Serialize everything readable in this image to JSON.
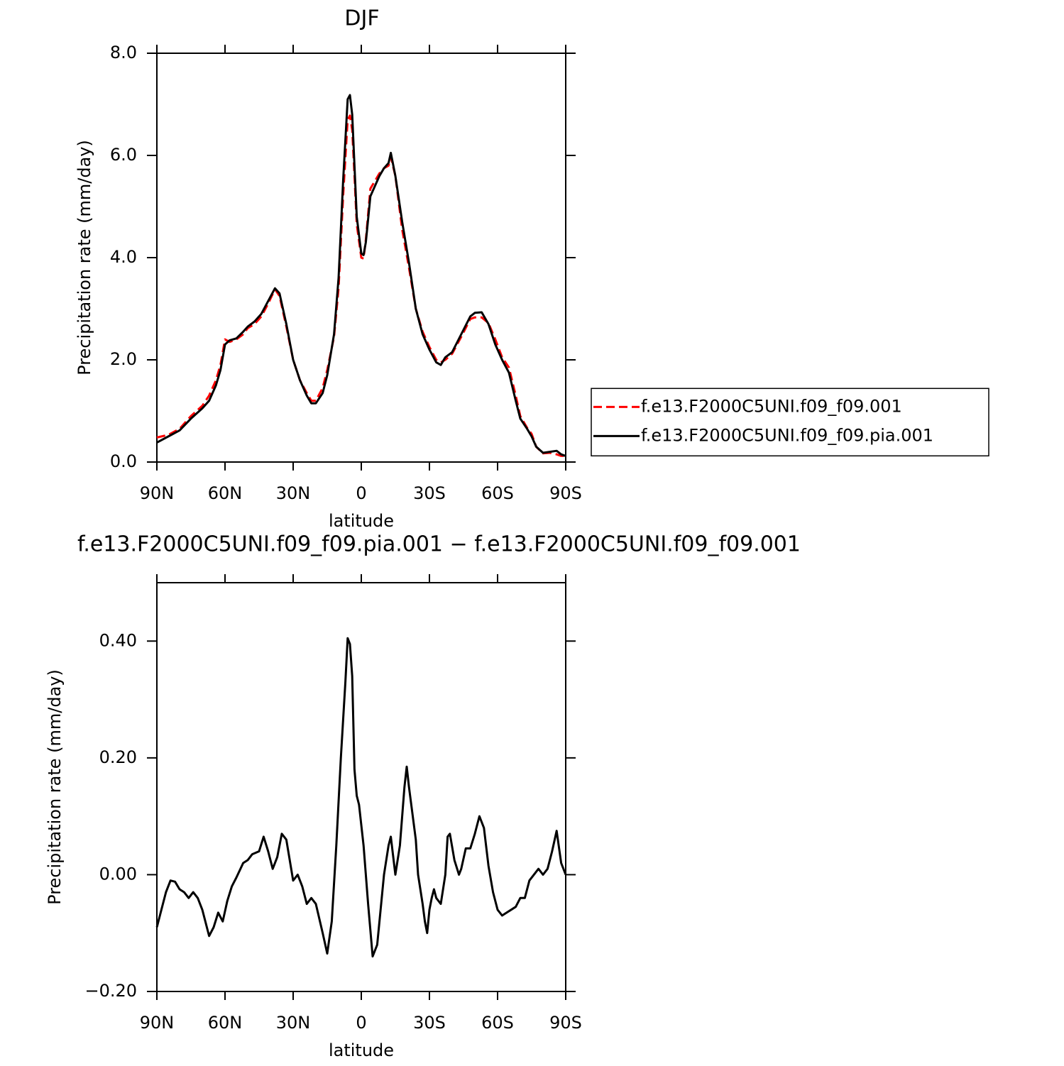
{
  "chart_data": [
    {
      "type": "line",
      "title": "DJF",
      "xlabel": "latitude",
      "ylabel": "Precipitation rate (mm/day)",
      "xlim": [
        90,
        -90
      ],
      "xticks": [
        {
          "value": 90,
          "label": "90N"
        },
        {
          "value": 60,
          "label": "60N"
        },
        {
          "value": 30,
          "label": "30N"
        },
        0,
        {
          "value": -30,
          "label": "30S"
        },
        {
          "value": -60,
          "label": "60S"
        },
        {
          "value": -90,
          "label": "90S"
        }
      ],
      "ylim": [
        0,
        8
      ],
      "yticks": [
        {
          "value": 0,
          "label": "0.0"
        },
        {
          "value": 2,
          "label": "2.0"
        },
        {
          "value": 4,
          "label": "4.0"
        },
        {
          "value": 6,
          "label": "6.0"
        },
        {
          "value": 8,
          "label": "8.0"
        }
      ],
      "legend": "right",
      "x": [
        90,
        85,
        80,
        75,
        70,
        67,
        64,
        62,
        60,
        58,
        55,
        52,
        50,
        47,
        44,
        41,
        38,
        36,
        33,
        30,
        27,
        24,
        22,
        20,
        17,
        15,
        12,
        10,
        8,
        6,
        5,
        4,
        3,
        2,
        0,
        -1,
        -2,
        -4,
        -6,
        -8,
        -10,
        -12,
        -13,
        -15,
        -18,
        -21,
        -24,
        -27,
        -30,
        -33,
        -35,
        -37,
        -40,
        -44,
        -48,
        -50,
        -53,
        -56,
        -59,
        -62,
        -65,
        -68,
        -70,
        -73,
        -75,
        -77,
        -80,
        -83,
        -86,
        -88,
        -90
      ],
      "series": [
        {
          "name": "f.e13.F2000C5UNI.f09_f09.001",
          "color": "#ff0000",
          "dash": "dashed",
          "values": [
            0.48,
            0.53,
            0.65,
            0.9,
            1.1,
            1.3,
            1.6,
            1.9,
            2.4,
            2.35,
            2.4,
            2.5,
            2.62,
            2.7,
            2.85,
            3.1,
            3.38,
            3.25,
            2.65,
            2.0,
            1.6,
            1.35,
            1.2,
            1.2,
            1.45,
            1.8,
            2.45,
            3.4,
            5.2,
            6.7,
            6.78,
            6.5,
            5.6,
            4.65,
            4.0,
            3.98,
            4.35,
            5.35,
            5.5,
            5.65,
            5.75,
            5.8,
            5.97,
            5.6,
            4.55,
            3.8,
            3.0,
            2.55,
            2.25,
            2.0,
            1.95,
            2.0,
            2.12,
            2.45,
            2.8,
            2.83,
            2.83,
            2.72,
            2.4,
            2.05,
            1.85,
            1.3,
            0.9,
            0.67,
            0.55,
            0.3,
            0.17,
            0.18,
            0.15,
            0.12,
            0.12
          ]
        },
        {
          "name": "f.e13.F2000C5UNI.f09_f09.pia.001",
          "color": "#000000",
          "dash": "solid",
          "values": [
            0.38,
            0.5,
            0.62,
            0.85,
            1.05,
            1.2,
            1.5,
            1.8,
            2.3,
            2.38,
            2.42,
            2.55,
            2.65,
            2.75,
            2.9,
            3.15,
            3.4,
            3.3,
            2.7,
            2.0,
            1.6,
            1.3,
            1.15,
            1.15,
            1.35,
            1.7,
            2.5,
            3.6,
            5.5,
            7.1,
            7.18,
            6.8,
            5.8,
            4.8,
            4.08,
            4.05,
            4.3,
            5.2,
            5.4,
            5.6,
            5.75,
            5.85,
            6.05,
            5.6,
            4.7,
            3.9,
            3.0,
            2.5,
            2.2,
            1.95,
            1.9,
            2.05,
            2.15,
            2.5,
            2.85,
            2.92,
            2.93,
            2.7,
            2.3,
            2.0,
            1.75,
            1.2,
            0.85,
            0.65,
            0.5,
            0.3,
            0.18,
            0.2,
            0.22,
            0.15,
            0.12
          ]
        }
      ]
    },
    {
      "type": "line",
      "title": "f.e13.F2000C5UNI.f09_f09.pia.001 − f.e13.F2000C5UNI.f09_f09.001",
      "xlabel": "latitude",
      "ylabel": "Precipitation rate (mm/day)",
      "xlim": [
        90,
        -90
      ],
      "xticks": [
        {
          "value": 90,
          "label": "90N"
        },
        {
          "value": 60,
          "label": "60N"
        },
        {
          "value": 30,
          "label": "30N"
        },
        0,
        {
          "value": -30,
          "label": "30S"
        },
        {
          "value": -60,
          "label": "60S"
        },
        {
          "value": -90,
          "label": "90S"
        }
      ],
      "ylim": [
        -0.2,
        0.5
      ],
      "yticks": [
        {
          "value": -0.2,
          "label": "−0.20"
        },
        {
          "value": 0,
          "label": "0.00"
        },
        {
          "value": 0.2,
          "label": "0.20"
        },
        {
          "value": 0.4,
          "label": "0.40"
        }
      ],
      "x": [
        90,
        88,
        86,
        84,
        82,
        80,
        78,
        76,
        74,
        72,
        70,
        67,
        65,
        63,
        61,
        59,
        57,
        55,
        52,
        50,
        48,
        45,
        43,
        41,
        39,
        37,
        35,
        33,
        30,
        28,
        26,
        24,
        22,
        20,
        17,
        15,
        13,
        11,
        9,
        7,
        6,
        5,
        4,
        3,
        2,
        1,
        -1,
        -3,
        -5,
        -7,
        -8,
        -10,
        -12,
        -13,
        -15,
        -17,
        -19,
        -20,
        -21,
        -23,
        -24,
        -25,
        -27,
        -28,
        -29,
        -30,
        -31,
        -32,
        -33,
        -35,
        -37,
        -38,
        -39,
        -41,
        -43,
        -44,
        -46,
        -48,
        -50,
        -52,
        -54,
        -56,
        -58,
        -60,
        -62,
        -64,
        -66,
        -68,
        -70,
        -72,
        -74,
        -76,
        -78,
        -80,
        -82,
        -84,
        -86,
        -88,
        -90
      ],
      "series": [
        {
          "color": "#000000",
          "dash": "solid",
          "values": [
            -0.09,
            -0.06,
            -0.03,
            -0.01,
            -0.012,
            -0.025,
            -0.03,
            -0.04,
            -0.03,
            -0.04,
            -0.06,
            -0.105,
            -0.09,
            -0.065,
            -0.08,
            -0.045,
            -0.02,
            -0.005,
            0.02,
            0.025,
            0.035,
            0.04,
            0.065,
            0.04,
            0.01,
            0.03,
            0.07,
            0.06,
            -0.01,
            0,
            -0.02,
            -0.05,
            -0.04,
            -0.05,
            -0.1,
            -0.135,
            -0.08,
            0.05,
            0.2,
            0.33,
            0.405,
            0.395,
            0.34,
            0.18,
            0.135,
            0.12,
            0.05,
            -0.05,
            -0.14,
            -0.12,
            -0.08,
            0,
            0.05,
            0.065,
            0,
            0.05,
            0.15,
            0.185,
            0.15,
            0.09,
            0.06,
            0,
            -0.05,
            -0.08,
            -0.1,
            -0.06,
            -0.04,
            -0.025,
            -0.04,
            -0.05,
            0,
            0.065,
            0.07,
            0.025,
            0,
            0.01,
            0.045,
            0.045,
            0.07,
            0.1,
            0.08,
            0.015,
            -0.03,
            -0.06,
            -0.07,
            -0.065,
            -0.06,
            -0.055,
            -0.04,
            -0.04,
            -0.01,
            0,
            0.01,
            0,
            0.01,
            0.04,
            0.075,
            0.02,
            0
          ]
        }
      ]
    }
  ]
}
